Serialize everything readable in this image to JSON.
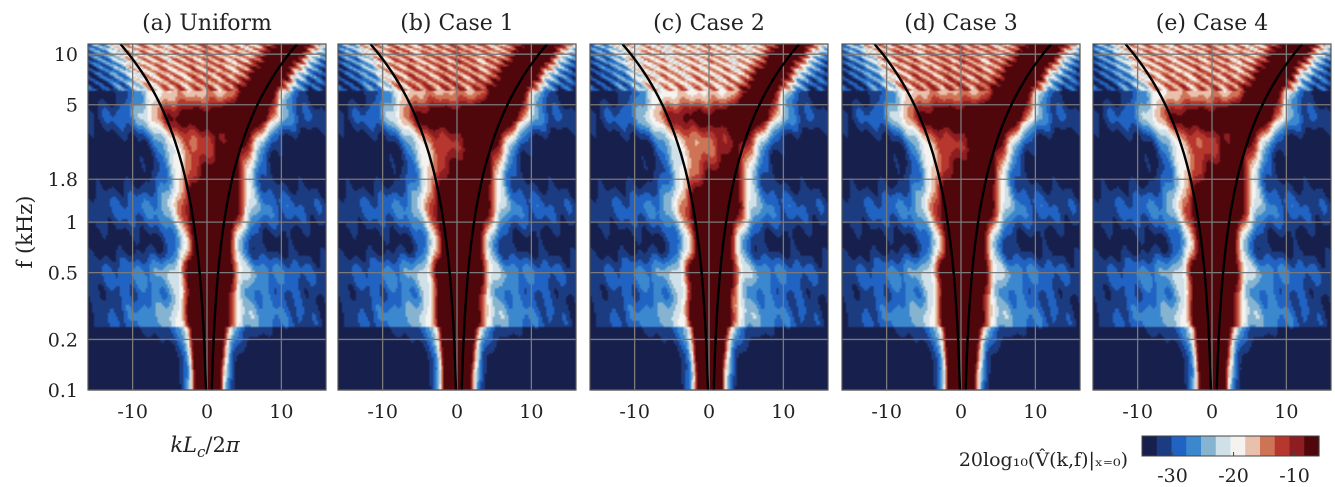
{
  "chart_data": [
    {
      "type": "heatmap",
      "title": "(a) Uniform",
      "xlabel": "kL_c/2π",
      "ylabel": "f (kHz)",
      "intensity": {
        "tail": 0.95,
        "core": 1.0,
        "band_left": 0.9,
        "band_right": 1.0
      }
    },
    {
      "type": "heatmap",
      "title": "(b) Case 1",
      "xlabel": "",
      "ylabel": "",
      "intensity": {
        "tail": 1.0,
        "core": 1.05,
        "band_left": 1.0,
        "band_right": 1.05
      }
    },
    {
      "type": "heatmap",
      "title": "(c) Case 2",
      "xlabel": "",
      "ylabel": "",
      "intensity": {
        "tail": 0.95,
        "core": 0.9,
        "band_left": 0.85,
        "band_right": 0.9
      }
    },
    {
      "type": "heatmap",
      "title": "(d) Case 3",
      "xlabel": "",
      "ylabel": "",
      "intensity": {
        "tail": 1.0,
        "core": 1.05,
        "band_left": 1.0,
        "band_right": 1.05
      }
    },
    {
      "type": "heatmap",
      "title": "(e) Case 4",
      "xlabel": "",
      "ylabel": "",
      "intensity": {
        "tail": 0.95,
        "core": 1.0,
        "band_left": 0.95,
        "band_right": 1.0
      }
    }
  ],
  "axes": {
    "x_ticks": [
      -10,
      0,
      10
    ],
    "x_tick_labels": [
      "-10",
      "0",
      "10"
    ],
    "xlim": [
      -16,
      16
    ],
    "y_ticks": [
      0.1,
      0.2,
      0.5,
      1,
      1.8,
      5,
      10
    ],
    "y_tick_labels": [
      "0.1",
      "0.2",
      "0.5",
      "1",
      "1.8",
      "5",
      "10"
    ],
    "ylim": [
      0.1,
      11.5
    ],
    "y_scale": "log",
    "grid": true,
    "xlabel_text": "kL_c/2π",
    "ylabel_text": "f (kHz)"
  },
  "colorbar": {
    "label": "20log₁₀(V̂(k,f)|ₓ₌₀)",
    "ticks": [
      -30,
      -20,
      -10
    ],
    "tick_labels": [
      "-30",
      "-20",
      "-10"
    ],
    "range": [
      -35,
      -6
    ],
    "colormap": [
      "#171f4c",
      "#1c3c82",
      "#2163c2",
      "#3b88cf",
      "#86b3d0",
      "#cfe0e8",
      "#f5f3f0",
      "#e8c0ab",
      "#cf7357",
      "#b7372e",
      "#8d1d20",
      "#50070c"
    ]
  },
  "overlay_curve": {
    "color": "#000000",
    "description_hidden": true
  }
}
